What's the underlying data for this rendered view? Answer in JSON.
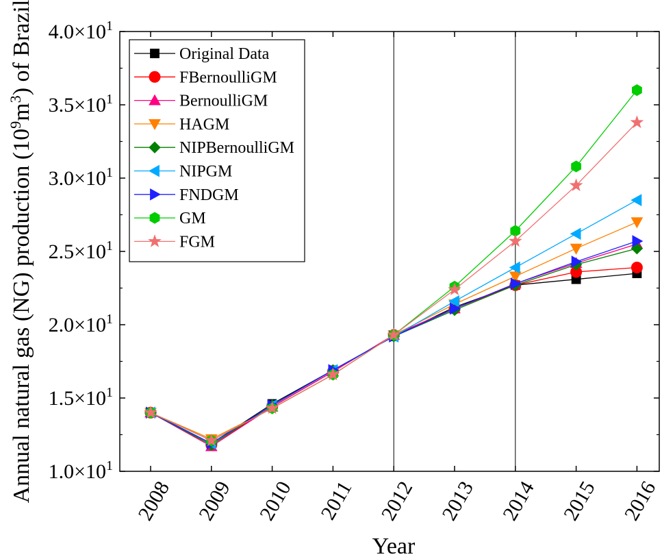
{
  "chart_data": {
    "type": "line",
    "title": "",
    "xlabel": "Year",
    "ylabel_main": "Annual natural gas (NG) production (10",
    "ylabel_sup1": "9",
    "ylabel_mid": "m",
    "ylabel_sup2": "3",
    "ylabel_end": ") of Brazil",
    "x": [
      "2008",
      "2009",
      "2010",
      "2011",
      "2012",
      "2013",
      "2014",
      "2015",
      "2016"
    ],
    "ylim": [
      10,
      40
    ],
    "y_ticks": [
      {
        "value": 10,
        "mant": "1.0×10",
        "exp": "1"
      },
      {
        "value": 15,
        "mant": "1.5×10",
        "exp": "1"
      },
      {
        "value": 20,
        "mant": "2.0×10",
        "exp": "1"
      },
      {
        "value": 25,
        "mant": "2.5×10",
        "exp": "1"
      },
      {
        "value": 30,
        "mant": "3.0×10",
        "exp": "1"
      },
      {
        "value": 35,
        "mant": "3.5×10",
        "exp": "1"
      },
      {
        "value": 40,
        "mant": "4.0×10",
        "exp": "1"
      }
    ],
    "vertical_lines": [
      "2012",
      "2014"
    ],
    "legend_position": "top-left",
    "grid": false,
    "series": [
      {
        "name": "Original Data",
        "color": "#000000",
        "marker": "square",
        "values": [
          14.0,
          11.9,
          14.6,
          16.9,
          19.2,
          21.2,
          22.7,
          23.1,
          23.5
        ]
      },
      {
        "name": "FBernoulliGM",
        "color": "#ff0000",
        "marker": "circle",
        "values": [
          14.0,
          11.8,
          14.4,
          16.8,
          19.3,
          21.1,
          22.7,
          23.6,
          23.9
        ]
      },
      {
        "name": "BernoulliGM",
        "color": "#ff0080",
        "marker": "triangle-up",
        "values": [
          14.0,
          11.7,
          14.4,
          16.8,
          19.3,
          21.1,
          22.8,
          24.2,
          25.5
        ]
      },
      {
        "name": "HAGM",
        "color": "#ff8000",
        "marker": "triangle-down",
        "values": [
          14.0,
          12.2,
          14.3,
          16.6,
          19.3,
          21.4,
          23.3,
          25.2,
          27.0
        ]
      },
      {
        "name": "NIPBernoulliGM",
        "color": "#008000",
        "marker": "diamond",
        "values": [
          14.0,
          11.8,
          14.5,
          16.9,
          19.2,
          21.0,
          22.7,
          24.1,
          25.2
        ]
      },
      {
        "name": "NIPGM",
        "color": "#00aaff",
        "marker": "triangle-left",
        "values": [
          14.0,
          11.9,
          14.5,
          16.9,
          19.2,
          21.6,
          23.9,
          26.2,
          28.5
        ]
      },
      {
        "name": "FNDGM",
        "color": "#2020ff",
        "marker": "triangle-right",
        "values": [
          14.0,
          11.9,
          14.5,
          16.9,
          19.2,
          21.1,
          22.8,
          24.3,
          25.7
        ]
      },
      {
        "name": "GM",
        "color": "#00cc00",
        "marker": "hexagon",
        "values": [
          14.0,
          12.1,
          14.3,
          16.6,
          19.3,
          22.6,
          26.4,
          30.8,
          36.0
        ]
      },
      {
        "name": "FGM",
        "color": "#f07070",
        "marker": "star",
        "values": [
          14.0,
          12.1,
          14.3,
          16.6,
          19.3,
          22.4,
          25.7,
          29.5,
          33.8
        ]
      }
    ]
  }
}
